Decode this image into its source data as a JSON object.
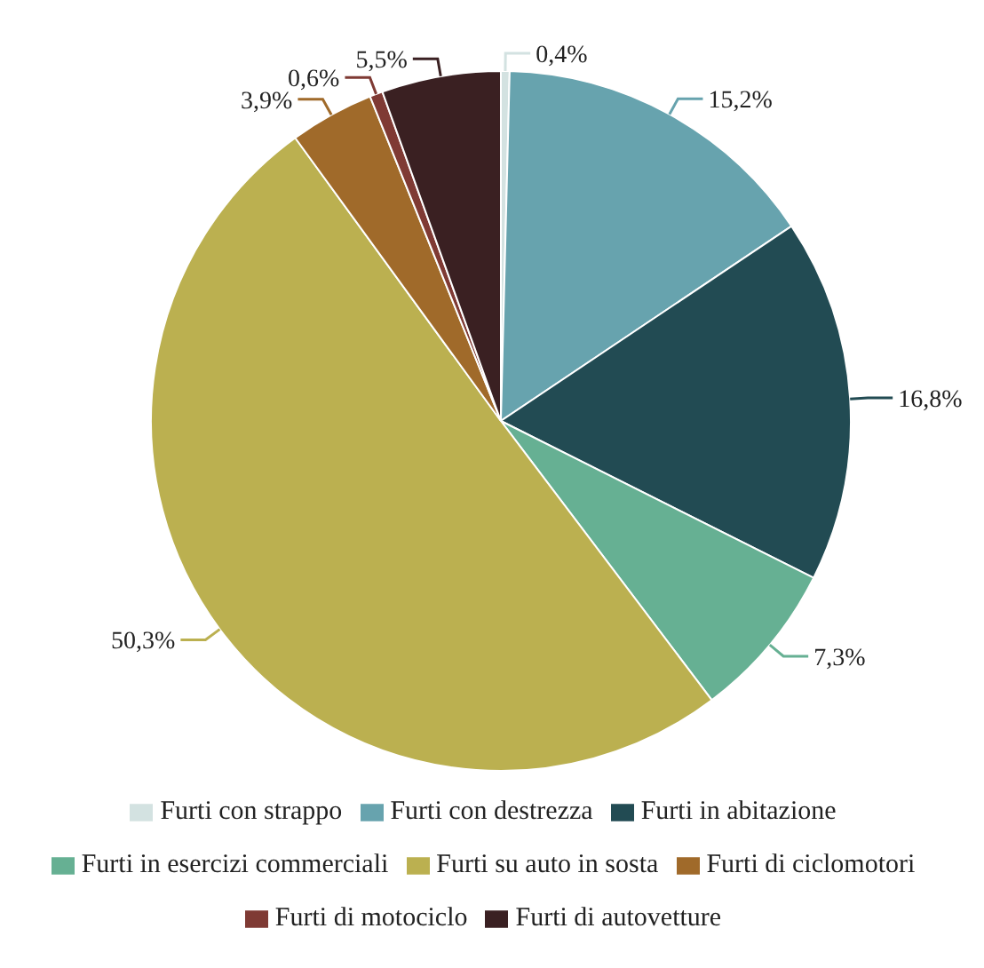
{
  "chart_data": {
    "type": "pie",
    "categories": [
      "Furti con strappo",
      "Furti con destrezza",
      "Furti in abitazione",
      "Furti in esercizi commerciali",
      "Furti su auto in sosta",
      "Furti di ciclomotori",
      "Furti di motociclo",
      "Furti di autovetture"
    ],
    "values": [
      0.4,
      15.2,
      16.8,
      7.3,
      50.3,
      3.9,
      0.6,
      5.5
    ],
    "value_labels": [
      "0,4%",
      "15,2%",
      "16,8%",
      "7,3%",
      "50,3%",
      "3,9%",
      "0,6%",
      "5,5%"
    ],
    "colors": [
      "#d3e2e1",
      "#67a3ae",
      "#224b53",
      "#66b093",
      "#bbb050",
      "#a06a2a",
      "#7f3a34",
      "#3a2022"
    ],
    "legend": "bottom"
  }
}
